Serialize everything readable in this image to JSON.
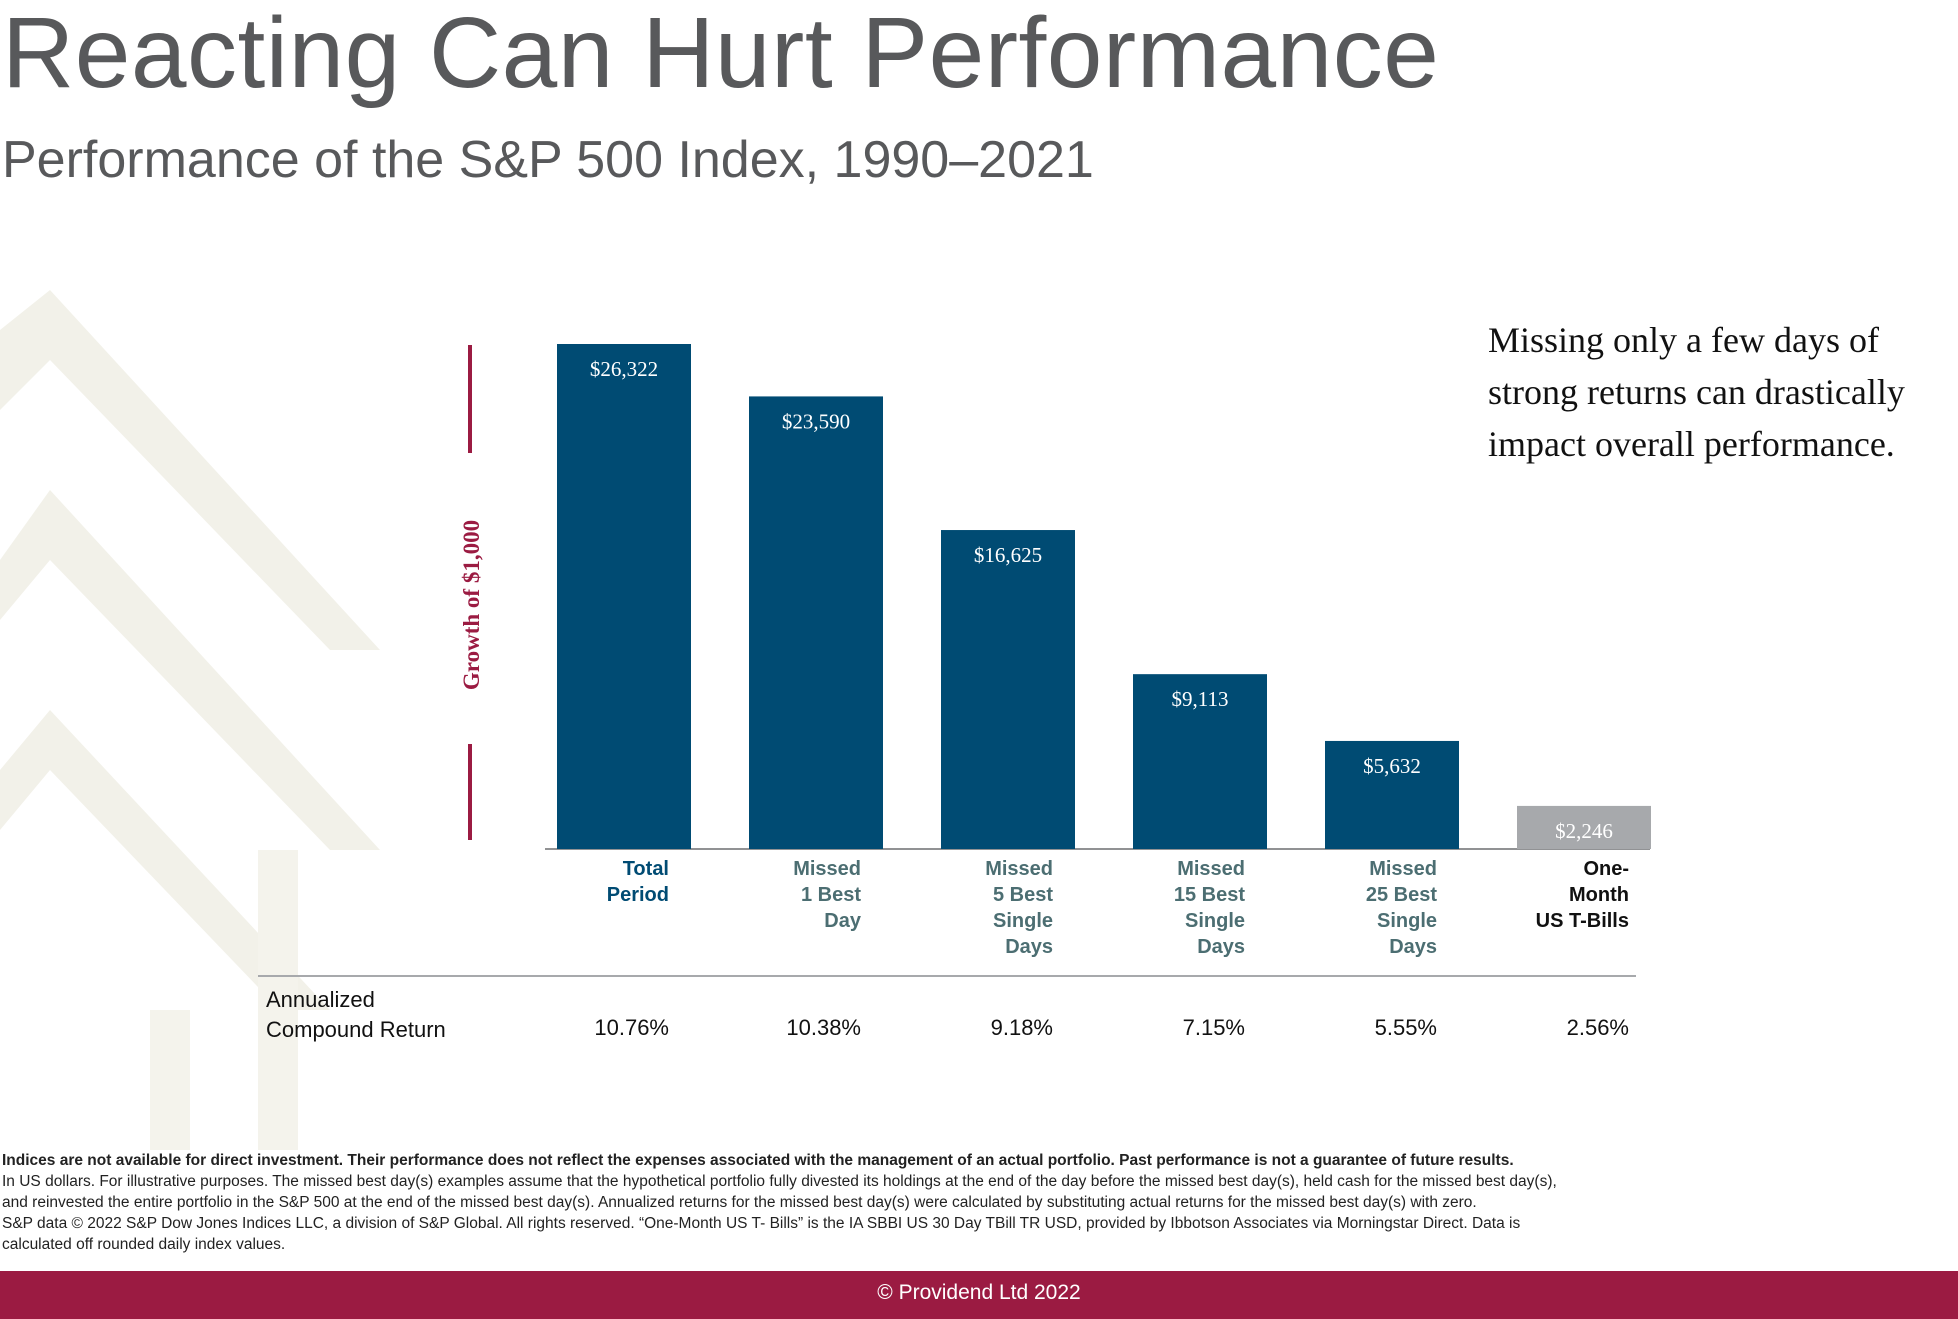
{
  "colors": {
    "title": "#58595b",
    "bar_primary": "#004b73",
    "bar_tbills": "#a7a9ac",
    "accent": "#9b1b42",
    "label_blue": "#004b73",
    "label_gray": "#4c6e72",
    "footer_bg": "#9b1b42"
  },
  "header": {
    "title": "Reacting Can Hurt Performance",
    "subtitle": "Performance of the S&P 500 Index, 1990–2021"
  },
  "callout": "Missing only a few days of strong returns can drastically impact overall performance.",
  "chart_data": {
    "type": "bar",
    "ylabel": "Growth of $1,000",
    "categories": [
      "Total\nPeriod",
      "Missed\n1 Best\nDay",
      "Missed\n5 Best\nSingle\nDays",
      "Missed\n15 Best\nSingle\nDays",
      "Missed\n25 Best\nSingle\nDays",
      "One-\nMonth\nUS T-Bills"
    ],
    "values": [
      26322,
      23590,
      16625,
      9113,
      5632,
      2246
    ],
    "value_labels": [
      "$26,322",
      "$23,590",
      "$16,625",
      "$9,113",
      "$5,632",
      "$2,246"
    ],
    "ylim": [
      0,
      26322
    ],
    "grid": false
  },
  "returns": {
    "header": "Annualized\nCompound Return",
    "values": [
      "10.76%",
      "10.38%",
      "9.18%",
      "7.15%",
      "5.55%",
      "2.56%"
    ]
  },
  "footnote": {
    "bold_line": "Indices are not available for direct investment. Their performance does not reflect the expenses associated with the management of an actual portfolio. Past performance is not a guarantee of future results.",
    "lines": [
      "In US dollars. For illustrative purposes. The missed best day(s) examples assume that the hypothetical portfolio fully divested its holdings at the end of the day before the missed best day(s), held cash for the missed best day(s),",
      "and reinvested the entire portfolio in the S&P 500 at the end of the missed best day(s). Annualized returns for the missed best day(s) were calculated by substituting actual returns for the missed best day(s) with zero.",
      "S&P data © 2022 S&P Dow Jones Indices LLC, a division of S&P Global. All rights reserved. “One-Month US T- Bills” is the IA SBBI US 30 Day TBill TR USD, provided by Ibbotson Associates via Morningstar Direct. Data is",
      "calculated off rounded daily index values."
    ]
  },
  "footer": {
    "copyright": "© Providend Ltd 2022"
  }
}
